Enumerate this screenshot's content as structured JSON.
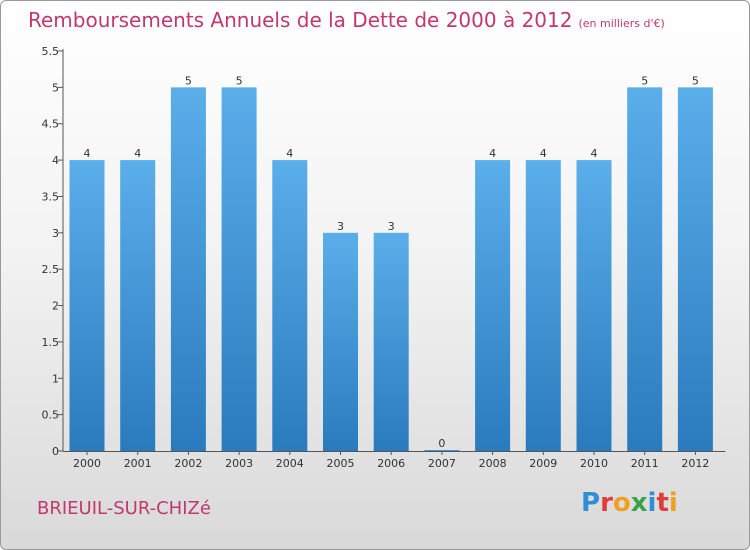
{
  "title": "Remboursements Annuels de la Dette de 2000 à 2012",
  "unit": "(en milliers d'€)",
  "town": "BRIEUIL-SUR-CHIZé",
  "logo": {
    "letters": [
      "P",
      "r",
      "o",
      "x",
      "i",
      "t",
      "i"
    ],
    "colors": [
      "#2f8fd4",
      "#e23b3b",
      "#f0a020",
      "#3aa34a",
      "#2f8fd4",
      "#e23b3b",
      "#f0a020"
    ]
  },
  "colors": {
    "bar": "#3d95d8",
    "bar_light": "#5aaeea",
    "title": "#c2386d"
  },
  "chart_data": {
    "type": "bar",
    "categories": [
      "2000",
      "2001",
      "2002",
      "2003",
      "2004",
      "2005",
      "2006",
      "2007",
      "2008",
      "2009",
      "2010",
      "2011",
      "2012"
    ],
    "values": [
      4,
      4,
      5,
      5,
      4,
      3,
      3,
      0,
      4,
      4,
      4,
      5,
      5
    ],
    "data_labels": [
      "4",
      "4",
      "5",
      "5",
      "4",
      "3",
      "3",
      "0",
      "4",
      "4",
      "4",
      "5",
      "5"
    ],
    "ylim": [
      0,
      5.5
    ],
    "yticks": [
      "0",
      "0.5",
      "1",
      "1.5",
      "2",
      "2.5",
      "3",
      "3.5",
      "4",
      "4.5",
      "5",
      "5.5"
    ],
    "grid": false
  }
}
